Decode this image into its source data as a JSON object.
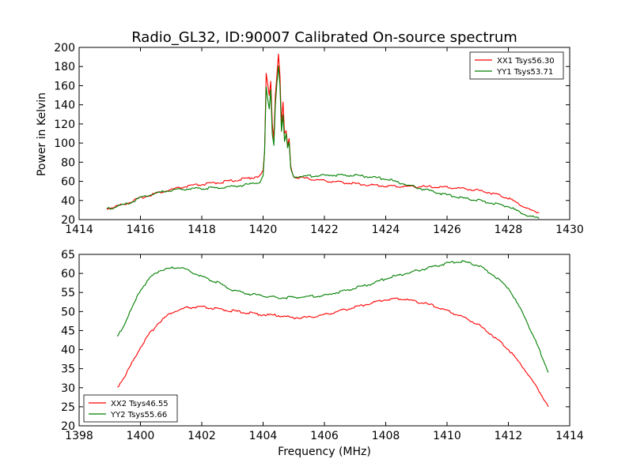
{
  "title": "Radio_GL32, ID:90007 Calibrated On-source spectrum",
  "ylabel": "Power in Kelvin",
  "xlabel": "Frequency (MHz)",
  "colors": {
    "xx": "#ff0000",
    "yy": "#007f00"
  },
  "chart_data": [
    {
      "type": "line",
      "xlim": [
        1414,
        1430
      ],
      "ylim": [
        20,
        200
      ],
      "xticks": [
        1414,
        1416,
        1418,
        1420,
        1422,
        1424,
        1426,
        1428,
        1430
      ],
      "yticks": [
        20,
        40,
        60,
        80,
        100,
        120,
        140,
        160,
        180,
        200
      ],
      "legend_position": "top-right",
      "series": [
        {
          "name": "XX1 Tsys56.30",
          "color": "#ff0000",
          "points": [
            [
              1414.9,
              31
            ],
            [
              1415.2,
              33
            ],
            [
              1415.6,
              37
            ],
            [
              1416.0,
              42
            ],
            [
              1416.4,
              46
            ],
            [
              1416.8,
              49
            ],
            [
              1417.2,
              52
            ],
            [
              1417.6,
              54.5
            ],
            [
              1418.0,
              56
            ],
            [
              1418.5,
              58
            ],
            [
              1419.0,
              60
            ],
            [
              1419.5,
              62.5
            ],
            [
              1419.9,
              65
            ],
            [
              1420.0,
              70
            ],
            [
              1420.05,
              90
            ],
            [
              1420.1,
              172
            ],
            [
              1420.15,
              160
            ],
            [
              1420.2,
              150
            ],
            [
              1420.25,
              165
            ],
            [
              1420.3,
              120
            ],
            [
              1420.35,
              105
            ],
            [
              1420.4,
              150
            ],
            [
              1420.45,
              170
            ],
            [
              1420.5,
              193
            ],
            [
              1420.55,
              170
            ],
            [
              1420.6,
              120
            ],
            [
              1420.65,
              142
            ],
            [
              1420.7,
              108
            ],
            [
              1420.75,
              112
            ],
            [
              1420.8,
              97
            ],
            [
              1420.85,
              104
            ],
            [
              1420.9,
              75
            ],
            [
              1421.0,
              64
            ],
            [
              1421.5,
              62
            ],
            [
              1422.0,
              60
            ],
            [
              1422.5,
              58.5
            ],
            [
              1423.0,
              57
            ],
            [
              1423.5,
              55.5
            ],
            [
              1424.0,
              54.5
            ],
            [
              1424.5,
              54
            ],
            [
              1425.0,
              54
            ],
            [
              1425.5,
              53.5
            ],
            [
              1426.0,
              53
            ],
            [
              1426.5,
              52
            ],
            [
              1427.0,
              50
            ],
            [
              1427.5,
              47
            ],
            [
              1428.0,
              42
            ],
            [
              1428.5,
              33
            ],
            [
              1428.8,
              28
            ],
            [
              1429.0,
              27
            ]
          ]
        },
        {
          "name": "YY1 Tsys53.71",
          "color": "#007f00",
          "points": [
            [
              1414.9,
              30
            ],
            [
              1415.2,
              33
            ],
            [
              1415.6,
              36
            ],
            [
              1416.0,
              42
            ],
            [
              1416.4,
              46
            ],
            [
              1416.8,
              49
            ],
            [
              1417.2,
              51
            ],
            [
              1417.6,
              51.5
            ],
            [
              1418.0,
              52
            ],
            [
              1418.5,
              52.5
            ],
            [
              1419.0,
              54
            ],
            [
              1419.5,
              56
            ],
            [
              1419.9,
              59
            ],
            [
              1420.0,
              65
            ],
            [
              1420.05,
              90
            ],
            [
              1420.1,
              157
            ],
            [
              1420.15,
              145
            ],
            [
              1420.2,
              135
            ],
            [
              1420.25,
              155
            ],
            [
              1420.3,
              110
            ],
            [
              1420.35,
              98
            ],
            [
              1420.4,
              140
            ],
            [
              1420.45,
              162
            ],
            [
              1420.5,
              180
            ],
            [
              1420.55,
              160
            ],
            [
              1420.6,
              112
            ],
            [
              1420.65,
              130
            ],
            [
              1420.7,
              100
            ],
            [
              1420.75,
              108
            ],
            [
              1420.8,
              93
            ],
            [
              1420.85,
              100
            ],
            [
              1420.9,
              72
            ],
            [
              1421.0,
              64
            ],
            [
              1421.5,
              65
            ],
            [
              1422.0,
              65.5
            ],
            [
              1422.5,
              66
            ],
            [
              1423.0,
              65.5
            ],
            [
              1423.5,
              64
            ],
            [
              1424.0,
              62
            ],
            [
              1424.5,
              57.5
            ],
            [
              1425.0,
              53
            ],
            [
              1425.5,
              49
            ],
            [
              1426.0,
              45
            ],
            [
              1426.5,
              42
            ],
            [
              1427.0,
              39.5
            ],
            [
              1427.5,
              36.5
            ],
            [
              1428.0,
              33
            ],
            [
              1428.5,
              25
            ],
            [
              1428.8,
              22
            ],
            [
              1429.0,
              21
            ]
          ]
        }
      ]
    },
    {
      "type": "line",
      "xlim": [
        1398,
        1414
      ],
      "ylim": [
        20,
        65
      ],
      "xticks": [
        1398,
        1400,
        1402,
        1404,
        1406,
        1408,
        1410,
        1412,
        1414
      ],
      "yticks": [
        20,
        25,
        30,
        35,
        40,
        45,
        50,
        55,
        60,
        65
      ],
      "legend_position": "bottom-left",
      "series": [
        {
          "name": "XX2 Tsys46.55",
          "color": "#ff0000",
          "points": [
            [
              1399.25,
              30
            ],
            [
              1399.5,
              33
            ],
            [
              1399.8,
              37.5
            ],
            [
              1400.0,
              40.5
            ],
            [
              1400.3,
              44
            ],
            [
              1400.6,
              47
            ],
            [
              1401.0,
              49.5
            ],
            [
              1401.5,
              50.8
            ],
            [
              1402.0,
              51
            ],
            [
              1402.5,
              50.5
            ],
            [
              1403.0,
              50
            ],
            [
              1403.5,
              49.5
            ],
            [
              1404.0,
              49
            ],
            [
              1404.5,
              48.8
            ],
            [
              1405.0,
              48.2
            ],
            [
              1405.5,
              48.3
            ],
            [
              1406.0,
              49
            ],
            [
              1406.5,
              50
            ],
            [
              1407.0,
              51
            ],
            [
              1407.5,
              52
            ],
            [
              1408.0,
              53
            ],
            [
              1408.5,
              53.2
            ],
            [
              1409.0,
              52.5
            ],
            [
              1409.5,
              51.5
            ],
            [
              1410.0,
              50
            ],
            [
              1410.5,
              48.5
            ],
            [
              1411.0,
              46.5
            ],
            [
              1411.5,
              43.5
            ],
            [
              1412.0,
              40
            ],
            [
              1412.5,
              35
            ],
            [
              1413.0,
              29
            ],
            [
              1413.3,
              25
            ]
          ]
        },
        {
          "name": "YY2 Tsys55.66",
          "color": "#007f00",
          "points": [
            [
              1399.25,
              43
            ],
            [
              1399.5,
              47
            ],
            [
              1399.8,
              52
            ],
            [
              1400.0,
              55.5
            ],
            [
              1400.3,
              58.5
            ],
            [
              1400.6,
              60.5
            ],
            [
              1401.0,
              61.2
            ],
            [
              1401.3,
              61.5
            ],
            [
              1401.6,
              60.5
            ],
            [
              1402.0,
              59
            ],
            [
              1402.5,
              57.5
            ],
            [
              1403.0,
              55.5
            ],
            [
              1403.5,
              54.5
            ],
            [
              1404.0,
              54
            ],
            [
              1404.5,
              53.5
            ],
            [
              1405.0,
              53.5
            ],
            [
              1405.5,
              53.8
            ],
            [
              1406.0,
              54
            ],
            [
              1406.5,
              55
            ],
            [
              1407.0,
              56
            ],
            [
              1407.5,
              57
            ],
            [
              1408.0,
              58.5
            ],
            [
              1408.5,
              59.5
            ],
            [
              1409.0,
              60.5
            ],
            [
              1409.5,
              61.5
            ],
            [
              1410.0,
              62.5
            ],
            [
              1410.5,
              63
            ],
            [
              1411.0,
              62
            ],
            [
              1411.5,
              59.5
            ],
            [
              1412.0,
              56
            ],
            [
              1412.5,
              49
            ],
            [
              1413.0,
              40
            ],
            [
              1413.3,
              34
            ]
          ]
        }
      ]
    }
  ]
}
